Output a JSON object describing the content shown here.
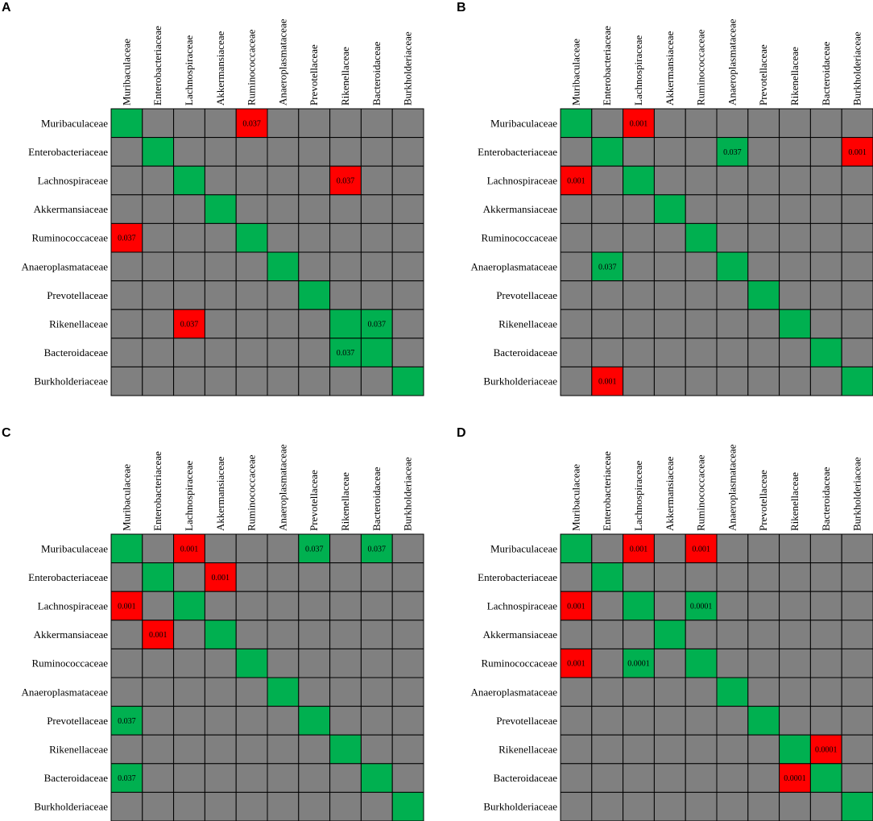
{
  "taxa": [
    "Muribaculaceae",
    "Enterobacteriaceae",
    "Lachnospiraceae",
    "Akkermansiaceae",
    "Ruminococcaceae",
    "Anaeroplasmataceae",
    "Prevotellaceae",
    "Rikenellaceae",
    "Bacteroidaceae",
    "Burkholderiaceae"
  ],
  "colors": {
    "neutral": "#808080",
    "positive": "#00b050",
    "negative": "#ff0000",
    "grid": "#000000"
  },
  "panels": [
    {
      "letter": "A",
      "cells": [
        {
          "row": 0,
          "col": 4,
          "value": "0.037",
          "sign": "negative"
        },
        {
          "row": 2,
          "col": 7,
          "value": "0.037",
          "sign": "negative"
        },
        {
          "row": 4,
          "col": 0,
          "value": "0.037",
          "sign": "negative"
        },
        {
          "row": 7,
          "col": 2,
          "value": "0.037",
          "sign": "negative"
        },
        {
          "row": 7,
          "col": 8,
          "value": "0.037",
          "sign": "positive"
        },
        {
          "row": 8,
          "col": 7,
          "value": "0.037",
          "sign": "positive"
        }
      ]
    },
    {
      "letter": "B",
      "cells": [
        {
          "row": 0,
          "col": 2,
          "value": "0.001",
          "sign": "negative"
        },
        {
          "row": 1,
          "col": 5,
          "value": "0.037",
          "sign": "positive"
        },
        {
          "row": 1,
          "col": 9,
          "value": "0.001",
          "sign": "negative"
        },
        {
          "row": 2,
          "col": 0,
          "value": "0.001",
          "sign": "negative"
        },
        {
          "row": 5,
          "col": 1,
          "value": "0.037",
          "sign": "positive"
        },
        {
          "row": 9,
          "col": 1,
          "value": "0.001",
          "sign": "negative"
        }
      ]
    },
    {
      "letter": "C",
      "cells": [
        {
          "row": 0,
          "col": 2,
          "value": "0.001",
          "sign": "negative"
        },
        {
          "row": 0,
          "col": 6,
          "value": "0.037",
          "sign": "positive"
        },
        {
          "row": 0,
          "col": 8,
          "value": "0.037",
          "sign": "positive"
        },
        {
          "row": 1,
          "col": 3,
          "value": "0.001",
          "sign": "negative"
        },
        {
          "row": 2,
          "col": 0,
          "value": "0.001",
          "sign": "negative"
        },
        {
          "row": 3,
          "col": 1,
          "value": "0.001",
          "sign": "negative"
        },
        {
          "row": 6,
          "col": 0,
          "value": "0.037",
          "sign": "positive"
        },
        {
          "row": 8,
          "col": 0,
          "value": "0.037",
          "sign": "positive"
        }
      ]
    },
    {
      "letter": "D",
      "cells": [
        {
          "row": 0,
          "col": 2,
          "value": "0.001",
          "sign": "negative"
        },
        {
          "row": 0,
          "col": 4,
          "value": "0.001",
          "sign": "negative"
        },
        {
          "row": 2,
          "col": 0,
          "value": "0.001",
          "sign": "negative"
        },
        {
          "row": 2,
          "col": 4,
          "value": "0.0001",
          "sign": "positive"
        },
        {
          "row": 4,
          "col": 0,
          "value": "0.001",
          "sign": "negative"
        },
        {
          "row": 4,
          "col": 2,
          "value": "0.0001",
          "sign": "positive"
        },
        {
          "row": 7,
          "col": 8,
          "value": "0.0001",
          "sign": "negative"
        },
        {
          "row": 8,
          "col": 7,
          "value": "0.0001",
          "sign": "negative"
        }
      ]
    }
  ]
}
